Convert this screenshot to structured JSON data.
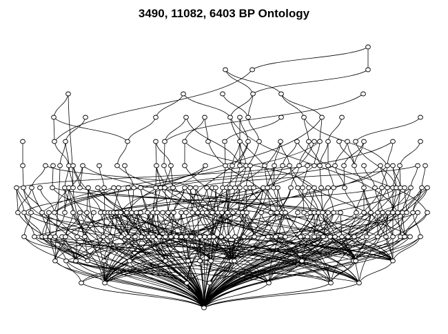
{
  "title": "3490, 11082, 6403 BP Ontology",
  "colors": {
    "background": "#ffffff",
    "ink": "#000000"
  }
}
